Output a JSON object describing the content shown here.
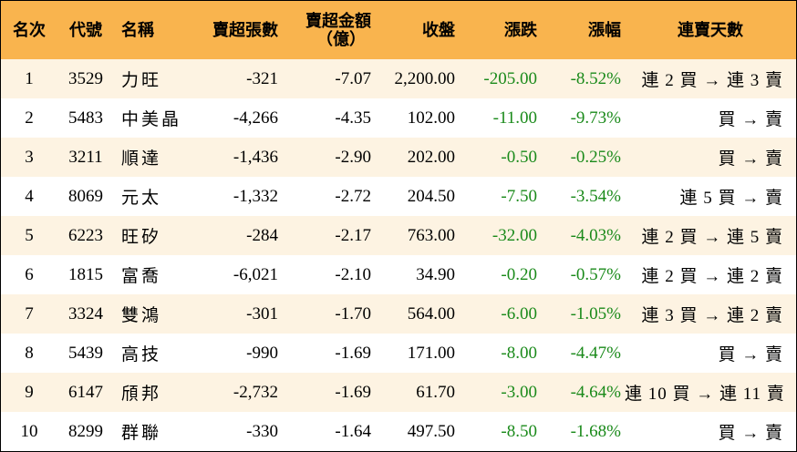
{
  "header": {
    "rank": "名次",
    "code": "代號",
    "name": "名稱",
    "net_sell_lots": "賣超張數",
    "net_sell_amount_line1": "賣超金額",
    "net_sell_amount_line2": "（億）",
    "close": "收盤",
    "change": "漲跌",
    "change_pct": "漲幅",
    "consecutive_days": "連賣天數"
  },
  "colors": {
    "header_bg": "#f9b44e",
    "odd_row_bg": "#fdf3e2",
    "even_row_bg": "#ffffff",
    "negative_change": "#1a8a1a"
  },
  "rows": [
    {
      "rank": "1",
      "code": "3529",
      "name": "力旺",
      "lots": "-321",
      "amount": "-7.07",
      "close": "2,200.00",
      "change": "-205.00",
      "pct": "-8.52%",
      "days": "連 2 買 → 連 3 賣"
    },
    {
      "rank": "2",
      "code": "5483",
      "name": "中美晶",
      "lots": "-4,266",
      "amount": "-4.35",
      "close": "102.00",
      "change": "-11.00",
      "pct": "-9.73%",
      "days": "買 → 賣"
    },
    {
      "rank": "3",
      "code": "3211",
      "name": "順達",
      "lots": "-1,436",
      "amount": "-2.90",
      "close": "202.00",
      "change": "-0.50",
      "pct": "-0.25%",
      "days": "買 → 賣"
    },
    {
      "rank": "4",
      "code": "8069",
      "name": "元太",
      "lots": "-1,332",
      "amount": "-2.72",
      "close": "204.50",
      "change": "-7.50",
      "pct": "-3.54%",
      "days": "連 5 買 → 賣"
    },
    {
      "rank": "5",
      "code": "6223",
      "name": "旺矽",
      "lots": "-284",
      "amount": "-2.17",
      "close": "763.00",
      "change": "-32.00",
      "pct": "-4.03%",
      "days": "連 2 買 → 連 5 賣"
    },
    {
      "rank": "6",
      "code": "1815",
      "name": "富喬",
      "lots": "-6,021",
      "amount": "-2.10",
      "close": "34.90",
      "change": "-0.20",
      "pct": "-0.57%",
      "days": "連 2 買 → 連 2 賣"
    },
    {
      "rank": "7",
      "code": "3324",
      "name": "雙鴻",
      "lots": "-301",
      "amount": "-1.70",
      "close": "564.00",
      "change": "-6.00",
      "pct": "-1.05%",
      "days": "連 3 買 → 連 2 賣"
    },
    {
      "rank": "8",
      "code": "5439",
      "name": "高技",
      "lots": "-990",
      "amount": "-1.69",
      "close": "171.00",
      "change": "-8.00",
      "pct": "-4.47%",
      "days": "買 → 賣"
    },
    {
      "rank": "9",
      "code": "6147",
      "name": "頎邦",
      "lots": "-2,732",
      "amount": "-1.69",
      "close": "61.70",
      "change": "-3.00",
      "pct": "-4.64%",
      "days": "連 10 買 → 連 11 賣"
    },
    {
      "rank": "10",
      "code": "8299",
      "name": "群聯",
      "lots": "-330",
      "amount": "-1.64",
      "close": "497.50",
      "change": "-8.50",
      "pct": "-1.68%",
      "days": "買 → 賣"
    }
  ]
}
